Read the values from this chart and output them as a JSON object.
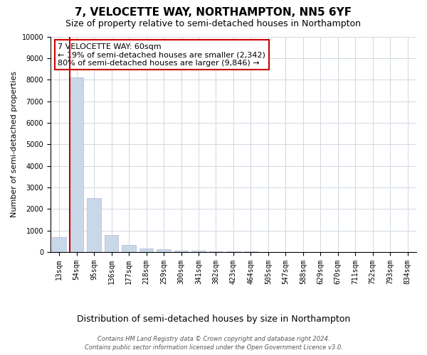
{
  "title": "7, VELOCETTE WAY, NORTHAMPTON, NN5 6YF",
  "subtitle": "Size of property relative to semi-detached houses in Northampton",
  "xlabel": "Distribution of semi-detached houses by size in Northampton",
  "ylabel": "Number of semi-detached properties",
  "footer1": "Contains HM Land Registry data © Crown copyright and database right 2024.",
  "footer2": "Contains public sector information licensed under the Open Government Licence v3.0.",
  "annotation_title": "7 VELOCETTE WAY: 60sqm",
  "annotation_line1": "← 19% of semi-detached houses are smaller (2,342)",
  "annotation_line2": "80% of semi-detached houses are larger (9,846) →",
  "categories": [
    "13sqm",
    "54sqm",
    "95sqm",
    "136sqm",
    "177sqm",
    "218sqm",
    "259sqm",
    "300sqm",
    "341sqm",
    "382sqm",
    "423sqm",
    "464sqm",
    "505sqm",
    "547sqm",
    "588sqm",
    "629sqm",
    "670sqm",
    "711sqm",
    "752sqm",
    "793sqm",
    "834sqm"
  ],
  "values": [
    700,
    8100,
    2500,
    800,
    320,
    180,
    120,
    80,
    55,
    38,
    28,
    20,
    15,
    12,
    9,
    7,
    6,
    5,
    4,
    3,
    2
  ],
  "bar_color": "#c8d8e8",
  "vline_color": "#cc0000",
  "vline_bar_index": 1,
  "ylim": [
    0,
    10000
  ],
  "yticks": [
    0,
    1000,
    2000,
    3000,
    4000,
    5000,
    6000,
    7000,
    8000,
    9000,
    10000
  ],
  "background_color": "#ffffff",
  "grid_color": "#d0d8e0",
  "annotation_box_facecolor": "#ffffff",
  "annotation_box_edgecolor": "#cc0000",
  "title_fontsize": 11,
  "subtitle_fontsize": 9,
  "annotation_fontsize": 8,
  "ylabel_fontsize": 8,
  "xlabel_fontsize": 9,
  "tick_fontsize": 7,
  "footer_fontsize": 6
}
